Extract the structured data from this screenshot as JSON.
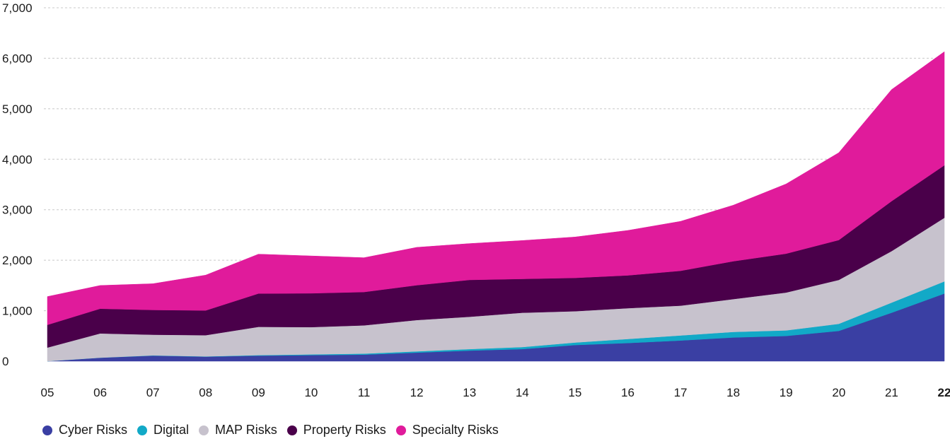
{
  "chart_data": {
    "type": "area",
    "stacked": true,
    "categories": [
      "05",
      "06",
      "07",
      "08",
      "09",
      "10",
      "11",
      "12",
      "13",
      "14",
      "15",
      "16",
      "17",
      "18",
      "19",
      "20",
      "21",
      "22"
    ],
    "ylim": [
      0,
      7000
    ],
    "yticks": [
      "0",
      "1,000",
      "2,000",
      "3,000",
      "4,000",
      "5,000",
      "6,000",
      "7,000"
    ],
    "ytick_values": [
      0,
      1000,
      2000,
      3000,
      4000,
      5000,
      6000,
      7000
    ],
    "grid": true,
    "legend_position": "bottom-left",
    "series": [
      {
        "name": "Cyber Risks",
        "color": "#3a3fa3",
        "values": [
          0,
          70,
          110,
          90,
          110,
          120,
          130,
          170,
          210,
          240,
          320,
          360,
          410,
          470,
          500,
          600,
          960,
          1340
        ]
      },
      {
        "name": "Digital",
        "color": "#12a9c7",
        "values": [
          0,
          0,
          5,
          5,
          10,
          15,
          20,
          25,
          30,
          40,
          50,
          80,
          100,
          110,
          110,
          140,
          200,
          240
        ]
      },
      {
        "name": "MAP Risks",
        "color": "#c7c2cd",
        "values": [
          270,
          480,
          410,
          420,
          560,
          540,
          560,
          620,
          640,
          680,
          620,
          610,
          590,
          650,
          750,
          870,
          1020,
          1260
        ]
      },
      {
        "name": "Property Risks",
        "color": "#4a004a",
        "values": [
          450,
          490,
          490,
          490,
          660,
          670,
          660,
          690,
          730,
          670,
          660,
          650,
          690,
          750,
          770,
          790,
          990,
          1040
        ]
      },
      {
        "name": "Specialty Risks",
        "color": "#e01b9b",
        "values": [
          560,
          460,
          520,
          700,
          780,
          740,
          680,
          750,
          720,
          760,
          810,
          890,
          980,
          1110,
          1380,
          1730,
          2210,
          2250
        ]
      }
    ]
  }
}
